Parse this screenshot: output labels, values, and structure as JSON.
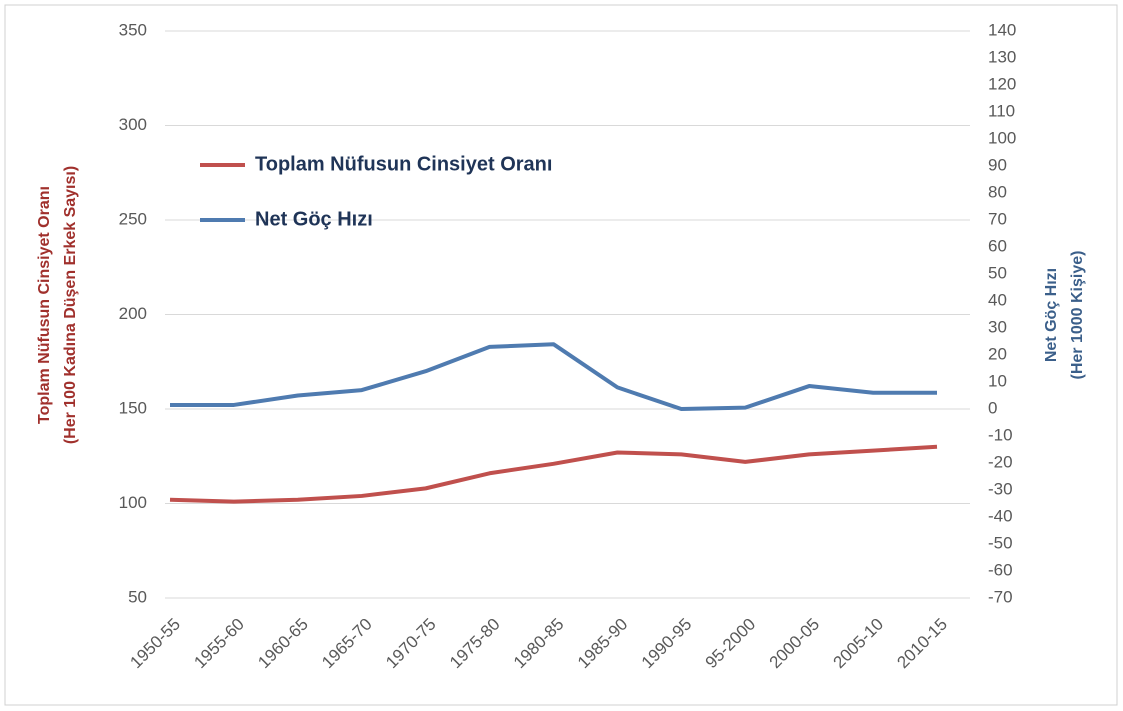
{
  "chart_data": {
    "type": "line",
    "categories": [
      "1950-55",
      "1955-60",
      "1960-65",
      "1965-70",
      "1970-75",
      "1975-80",
      "1980-85",
      "1985-90",
      "1990-95",
      "95-2000",
      "2000-05",
      "2005-10",
      "2010-15"
    ],
    "series": [
      {
        "name": "Toplam Nüfusun Cinsiyet Oranı",
        "color": "#c0504d",
        "axis": "y",
        "values": [
          102,
          101,
          102,
          104,
          108,
          116,
          121,
          127,
          126,
          122,
          126,
          128,
          130
        ]
      },
      {
        "name": "Net Göç Hızı",
        "color": "#4f7bb0",
        "axis": "y2",
        "values": [
          1.5,
          1.5,
          5,
          7,
          14,
          23,
          24,
          8,
          0,
          0.5,
          8.5,
          6,
          6
        ]
      }
    ],
    "ylabel": [
      "Toplam Nüfusun Cinsiyet Oranı",
      "(Her 100 Kadına Düşen Erkek Sayısı)"
    ],
    "y2label": [
      "Net Göç Hızı",
      "(Her 1000 Kişiye)"
    ],
    "ylim": [
      50,
      350
    ],
    "yticks": [
      50,
      100,
      150,
      200,
      250,
      300,
      350
    ],
    "y2lim": [
      -70,
      140
    ],
    "y2ticks": [
      -70,
      -60,
      -50,
      -40,
      -30,
      -20,
      -10,
      0,
      10,
      20,
      30,
      40,
      50,
      60,
      70,
      80,
      90,
      100,
      110,
      120,
      130,
      140
    ],
    "grid": true,
    "legend": "upper left"
  }
}
